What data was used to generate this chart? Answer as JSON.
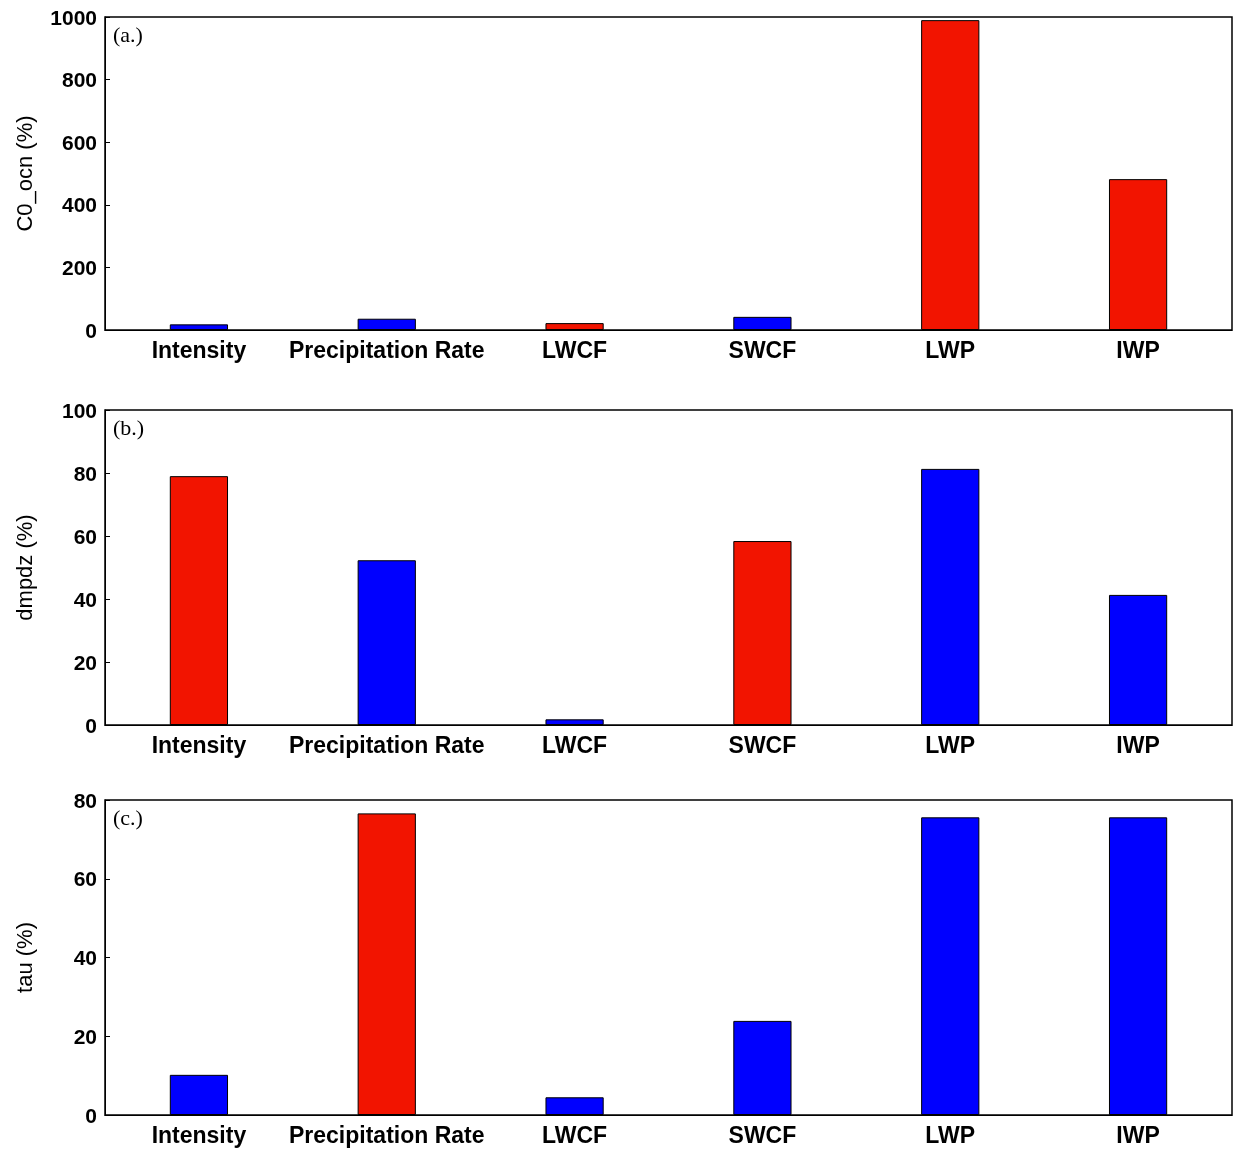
{
  "chart_data": [
    {
      "type": "bar",
      "ylabel": "C0_ocn (%)",
      "annotations": [
        "(a.)"
      ],
      "categories": [
        "Intensity",
        "Precipitation Rate",
        "LWCF",
        "SWCF",
        "LWP",
        "IWP"
      ],
      "values": [
        18,
        36,
        22,
        42,
        990,
        482
      ],
      "colors": [
        "#0000ff",
        "#0000ff",
        "#f21400",
        "#0000ff",
        "#f21400",
        "#f21400"
      ],
      "ylim": [
        0,
        1000
      ],
      "yticks": [
        0,
        200,
        400,
        600,
        800,
        1000
      ]
    },
    {
      "type": "bar",
      "ylabel": "dmpdz (%)",
      "annotations": [
        "(b.)"
      ],
      "categories": [
        "Intensity",
        "Precipitation Rate",
        "LWCF",
        "SWCF",
        "LWP",
        "IWP"
      ],
      "values": [
        79,
        52.3,
        1.8,
        58.4,
        81.3,
        41.3
      ],
      "colors": [
        "#f21400",
        "#0000ff",
        "#0000ff",
        "#f21400",
        "#0000ff",
        "#0000ff"
      ],
      "ylim": [
        0,
        100
      ],
      "yticks": [
        0,
        20,
        40,
        60,
        80,
        100
      ]
    },
    {
      "type": "bar",
      "ylabel": "tau (%)",
      "annotations": [
        "(c.)"
      ],
      "categories": [
        "Intensity",
        "Precipitation Rate",
        "LWCF",
        "SWCF",
        "LWP",
        "IWP"
      ],
      "values": [
        10.2,
        76.6,
        4.5,
        23.9,
        75.6,
        75.6
      ],
      "colors": [
        "#0000ff",
        "#f21400",
        "#0000ff",
        "#0000ff",
        "#0000ff",
        "#0000ff"
      ],
      "ylim": [
        0,
        80
      ],
      "yticks": [
        0,
        20,
        40,
        60,
        80
      ]
    }
  ]
}
